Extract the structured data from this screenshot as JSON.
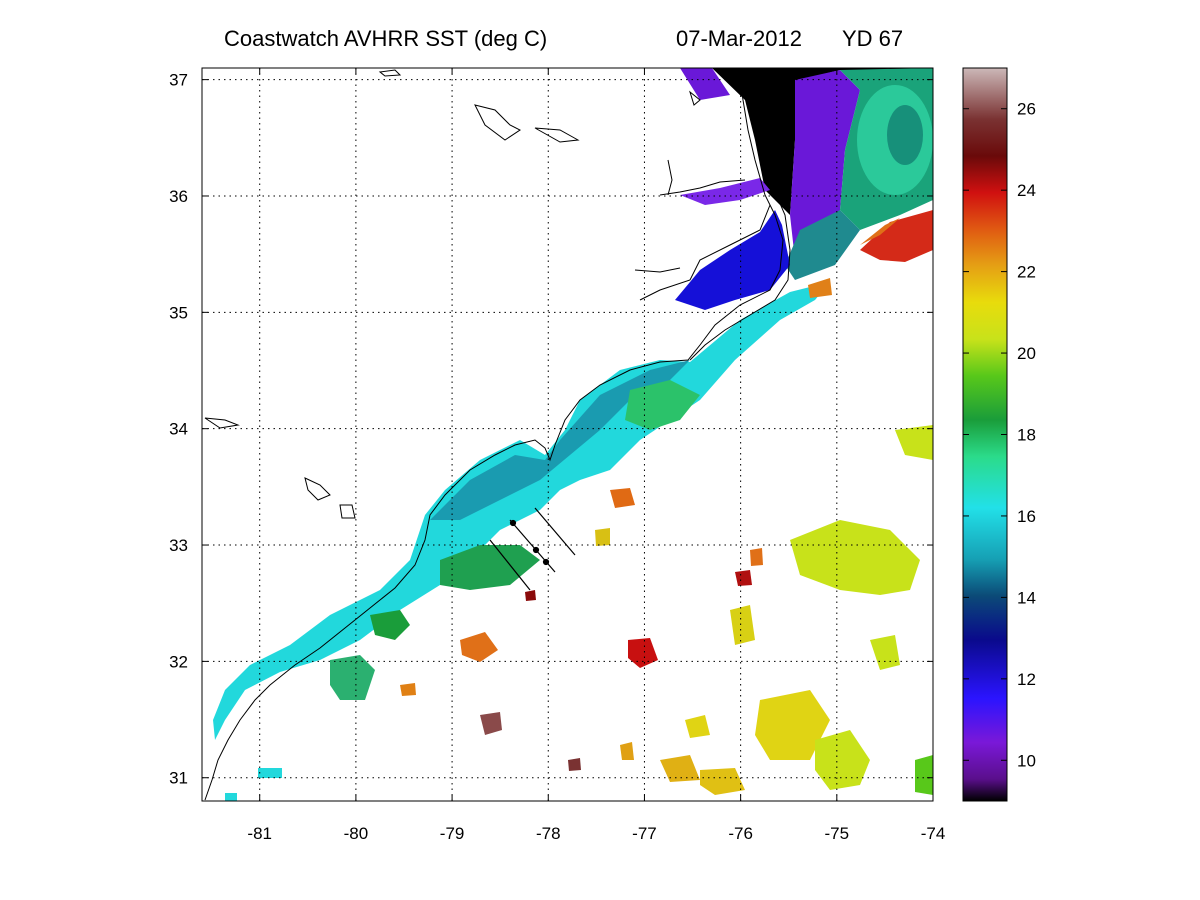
{
  "title": {
    "product": "Coastwatch   AVHRR   SST  (deg C)",
    "date": "07-Mar-2012",
    "yearday": "YD 67"
  },
  "map": {
    "x_ticks": [
      "-81",
      "-80",
      "-79",
      "-78",
      "-77",
      "-76",
      "-75",
      "-74"
    ],
    "y_ticks": [
      "37",
      "36",
      "35",
      "34",
      "33",
      "32",
      "31"
    ],
    "lon_range": [
      -81.6,
      -74
    ],
    "lat_range": [
      30.8,
      37.1
    ],
    "grid": true,
    "land_color": "#ffffff",
    "coast_color": "#000000"
  },
  "colorbar": {
    "ticks": [
      "26",
      "24",
      "22",
      "20",
      "18",
      "16",
      "14",
      "12",
      "10"
    ],
    "range": [
      9,
      27
    ],
    "colormap": [
      "#5a0f8c",
      "#7a18d8",
      "#2b14ff",
      "#0a0a8c",
      "#0b4a77",
      "#16a0b4",
      "#22e0e8",
      "#2bdb8a",
      "#1a9d3a",
      "#58c81a",
      "#c8e21a",
      "#e8dc0c",
      "#e5a014",
      "#e05a12",
      "#d01010",
      "#6a0a0a",
      "#7a3232",
      "#b48a8a",
      "#ccb8b8"
    ]
  }
}
